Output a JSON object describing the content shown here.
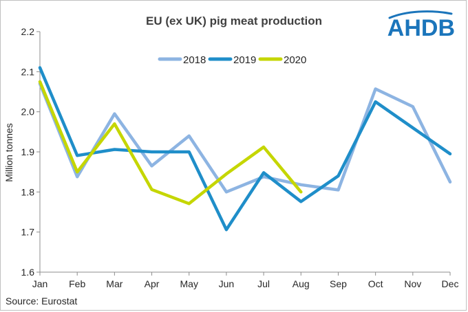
{
  "chart_data": {
    "type": "line",
    "title": "EU (ex UK) pig meat production",
    "ylabel": "Million tonnes",
    "xlabel": "",
    "categories": [
      "Jan",
      "Feb",
      "Mar",
      "Apr",
      "May",
      "Jun",
      "Jul",
      "Aug",
      "Sep",
      "Oct",
      "Nov",
      "Dec"
    ],
    "ylim": [
      1.6,
      2.2
    ],
    "yticks": [
      "1.6",
      "1.7",
      "1.8",
      "1.9",
      "2.0",
      "2.1",
      "2.2"
    ],
    "grid": false,
    "legend_position": "top",
    "series": [
      {
        "name": "2018",
        "color": "#8db4e2",
        "values": [
          2.07,
          1.838,
          1.995,
          1.865,
          1.94,
          1.8,
          1.838,
          1.818,
          1.805,
          2.057,
          2.013,
          1.825
        ]
      },
      {
        "name": "2019",
        "color": "#1f8ec9",
        "values": [
          2.11,
          1.891,
          1.906,
          1.9,
          1.9,
          1.706,
          1.848,
          1.776,
          1.84,
          2.025,
          1.96,
          1.895
        ]
      },
      {
        "name": "2020",
        "color": "#c5d600",
        "values": [
          2.075,
          1.85,
          1.97,
          1.806,
          1.771,
          1.845,
          1.912,
          1.8,
          null,
          null,
          null,
          null
        ]
      }
    ]
  },
  "source": "Source: Eurostat",
  "logo": {
    "text": "AHDB",
    "color": "#1b75bb"
  }
}
